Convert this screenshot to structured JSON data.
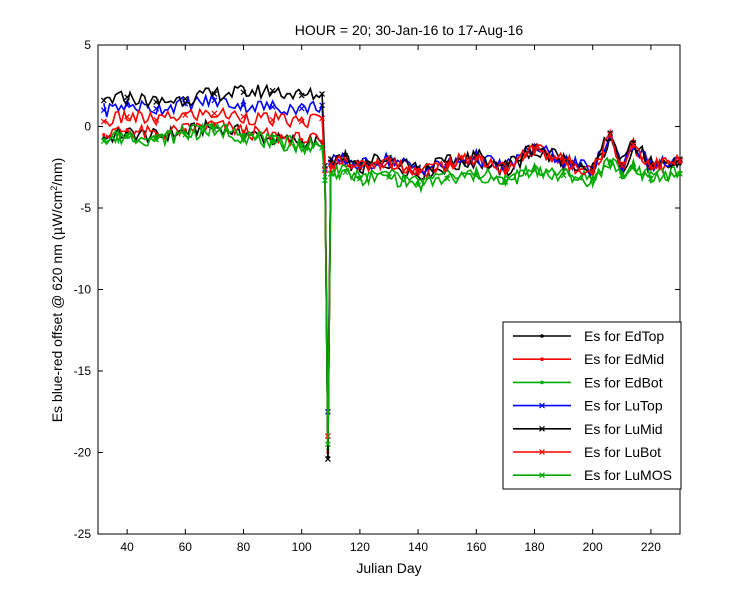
{
  "chart_data": {
    "type": "line",
    "title": "HOUR = 20; 30-Jan-16 to 17-Aug-16",
    "xlabel": "Julian Day",
    "ylabel": {
      "prefix": "Es blue-red offset @ 620 nm (",
      "mu": "μ",
      "mid": "W/cm",
      "sup": "2",
      "suffix": "/nm)"
    },
    "xlim": [
      30,
      230
    ],
    "ylim": [
      -25,
      5
    ],
    "xticks": [
      40,
      60,
      80,
      100,
      120,
      140,
      160,
      180,
      200,
      220
    ],
    "yticks": [
      -25,
      -20,
      -15,
      -10,
      -5,
      0,
      5
    ],
    "grid": false,
    "legend_position": "bottom-right",
    "series": [
      {
        "name": "Es for EdTop",
        "color": "#000000",
        "marker": "dot",
        "points": [
          [
            32,
            -0.7
          ],
          [
            40,
            -0.4
          ],
          [
            50,
            -0.6
          ],
          [
            60,
            -0.3
          ],
          [
            70,
            0.0
          ],
          [
            80,
            -0.4
          ],
          [
            90,
            -0.8
          ],
          [
            100,
            -0.9
          ],
          [
            107,
            -1.0
          ],
          [
            108,
            -3.0
          ],
          [
            109,
            -20.3
          ],
          [
            110,
            -2.5
          ],
          [
            115,
            -2.1
          ],
          [
            120,
            -2.6
          ],
          [
            130,
            -2.2
          ],
          [
            140,
            -2.9
          ],
          [
            150,
            -2.5
          ],
          [
            160,
            -2.1
          ],
          [
            170,
            -2.8
          ],
          [
            180,
            -1.5
          ],
          [
            190,
            -2.3
          ],
          [
            200,
            -2.9
          ],
          [
            206,
            -0.8
          ],
          [
            210,
            -2.6
          ],
          [
            214,
            -1.3
          ],
          [
            220,
            -2.6
          ],
          [
            230,
            -2.3
          ]
        ]
      },
      {
        "name": "Es for EdMid",
        "color": "#ff0000",
        "marker": "dot",
        "points": [
          [
            32,
            -0.5
          ],
          [
            40,
            -0.2
          ],
          [
            50,
            -0.5
          ],
          [
            60,
            -0.2
          ],
          [
            70,
            0.1
          ],
          [
            80,
            -0.3
          ],
          [
            90,
            -0.6
          ],
          [
            100,
            -0.8
          ],
          [
            107,
            -0.9
          ],
          [
            108,
            -2.8
          ],
          [
            109,
            -20.0
          ],
          [
            110,
            -2.4
          ],
          [
            115,
            -2.0
          ],
          [
            120,
            -2.5
          ],
          [
            130,
            -2.1
          ],
          [
            140,
            -2.8
          ],
          [
            150,
            -2.4
          ],
          [
            160,
            -2.0
          ],
          [
            170,
            -2.7
          ],
          [
            180,
            -1.4
          ],
          [
            190,
            -2.2
          ],
          [
            200,
            -2.8
          ],
          [
            206,
            -0.6
          ],
          [
            210,
            -2.5
          ],
          [
            214,
            -1.2
          ],
          [
            220,
            -2.5
          ],
          [
            230,
            -2.2
          ]
        ]
      },
      {
        "name": "Es for EdBot",
        "color": "#00aa00",
        "marker": "dot",
        "points": [
          [
            32,
            -0.8
          ],
          [
            40,
            -0.5
          ],
          [
            50,
            -0.7
          ],
          [
            60,
            -0.4
          ],
          [
            70,
            -0.1
          ],
          [
            80,
            -0.5
          ],
          [
            90,
            -0.9
          ],
          [
            100,
            -1.1
          ],
          [
            107,
            -1.2
          ],
          [
            108,
            -3.2
          ],
          [
            109,
            -19.8
          ],
          [
            110,
            -2.8
          ],
          [
            115,
            -2.7
          ],
          [
            120,
            -3.1
          ],
          [
            130,
            -3.0
          ],
          [
            140,
            -3.5
          ],
          [
            150,
            -3.1
          ],
          [
            160,
            -2.9
          ],
          [
            170,
            -3.3
          ],
          [
            180,
            -2.6
          ],
          [
            190,
            -2.9
          ],
          [
            200,
            -3.2
          ],
          [
            206,
            -2.1
          ],
          [
            210,
            -2.9
          ],
          [
            214,
            -2.4
          ],
          [
            220,
            -3.1
          ],
          [
            230,
            -2.8
          ]
        ]
      },
      {
        "name": "Es for LuTop",
        "color": "#0000ff",
        "marker": "x",
        "points": [
          [
            32,
            1.0
          ],
          [
            40,
            1.3
          ],
          [
            50,
            1.1
          ],
          [
            60,
            1.4
          ],
          [
            70,
            1.6
          ],
          [
            80,
            1.3
          ],
          [
            90,
            1.2
          ],
          [
            100,
            1.1
          ],
          [
            107,
            1.3
          ],
          [
            108,
            -2.6
          ],
          [
            109,
            -17.5
          ],
          [
            110,
            -2.2
          ],
          [
            115,
            -2.0
          ],
          [
            120,
            -2.4
          ],
          [
            130,
            -2.0
          ],
          [
            140,
            -2.6
          ],
          [
            150,
            -2.3
          ],
          [
            160,
            -1.9
          ],
          [
            170,
            -2.5
          ],
          [
            180,
            -1.3
          ],
          [
            190,
            -2.1
          ],
          [
            200,
            -2.7
          ],
          [
            206,
            -0.5
          ],
          [
            210,
            -2.4
          ],
          [
            214,
            -1.1
          ],
          [
            220,
            -2.4
          ],
          [
            230,
            -2.1
          ]
        ]
      },
      {
        "name": "Es for LuMid",
        "color": "#000000",
        "marker": "x",
        "points": [
          [
            32,
            1.6
          ],
          [
            40,
            1.8
          ],
          [
            50,
            1.5
          ],
          [
            60,
            1.7
          ],
          [
            70,
            2.0
          ],
          [
            80,
            2.1
          ],
          [
            90,
            2.2
          ],
          [
            100,
            1.9
          ],
          [
            107,
            2.0
          ],
          [
            108,
            -2.4
          ],
          [
            109,
            -20.4
          ],
          [
            110,
            -2.0
          ],
          [
            115,
            -1.8
          ],
          [
            120,
            -2.2
          ],
          [
            130,
            -1.9
          ],
          [
            140,
            -2.5
          ],
          [
            150,
            -2.2
          ],
          [
            160,
            -1.8
          ],
          [
            170,
            -2.4
          ],
          [
            180,
            -1.2
          ],
          [
            190,
            -2.0
          ],
          [
            200,
            -2.6
          ],
          [
            206,
            -0.4
          ],
          [
            210,
            -2.3
          ],
          [
            214,
            -1.0
          ],
          [
            220,
            -2.3
          ],
          [
            230,
            -2.0
          ]
        ]
      },
      {
        "name": "Es for LuBot",
        "color": "#ff0000",
        "marker": "x",
        "points": [
          [
            32,
            0.3
          ],
          [
            40,
            0.6
          ],
          [
            50,
            0.4
          ],
          [
            60,
            0.7
          ],
          [
            70,
            0.8
          ],
          [
            80,
            0.6
          ],
          [
            90,
            0.4
          ],
          [
            100,
            0.3
          ],
          [
            107,
            0.5
          ],
          [
            108,
            -2.7
          ],
          [
            109,
            -19.0
          ],
          [
            110,
            -2.3
          ],
          [
            115,
            -2.0
          ],
          [
            120,
            -2.5
          ],
          [
            130,
            -2.1
          ],
          [
            140,
            -2.7
          ],
          [
            150,
            -2.3
          ],
          [
            160,
            -1.9
          ],
          [
            170,
            -2.6
          ],
          [
            180,
            -1.3
          ],
          [
            190,
            -2.1
          ],
          [
            200,
            -2.7
          ],
          [
            206,
            -0.5
          ],
          [
            210,
            -2.4
          ],
          [
            214,
            -1.1
          ],
          [
            220,
            -2.4
          ],
          [
            230,
            -2.1
          ]
        ]
      },
      {
        "name": "Es for LuMOS",
        "color": "#00aa00",
        "marker": "x",
        "points": [
          [
            32,
            -0.9
          ],
          [
            40,
            -0.6
          ],
          [
            50,
            -0.8
          ],
          [
            60,
            -0.5
          ],
          [
            70,
            -0.2
          ],
          [
            80,
            -0.6
          ],
          [
            90,
            -1.0
          ],
          [
            100,
            -1.2
          ],
          [
            107,
            -1.3
          ],
          [
            108,
            -3.3
          ],
          [
            109,
            -19.5
          ],
          [
            110,
            -2.9
          ],
          [
            115,
            -2.8
          ],
          [
            120,
            -3.2
          ],
          [
            130,
            -3.1
          ],
          [
            140,
            -3.6
          ],
          [
            150,
            -3.2
          ],
          [
            160,
            -3.0
          ],
          [
            170,
            -3.4
          ],
          [
            180,
            -2.7
          ],
          [
            190,
            -3.0
          ],
          [
            200,
            -3.3
          ],
          [
            206,
            -2.2
          ],
          [
            210,
            -3.0
          ],
          [
            214,
            -2.5
          ],
          [
            220,
            -3.2
          ],
          [
            230,
            -2.9
          ]
        ]
      }
    ]
  }
}
